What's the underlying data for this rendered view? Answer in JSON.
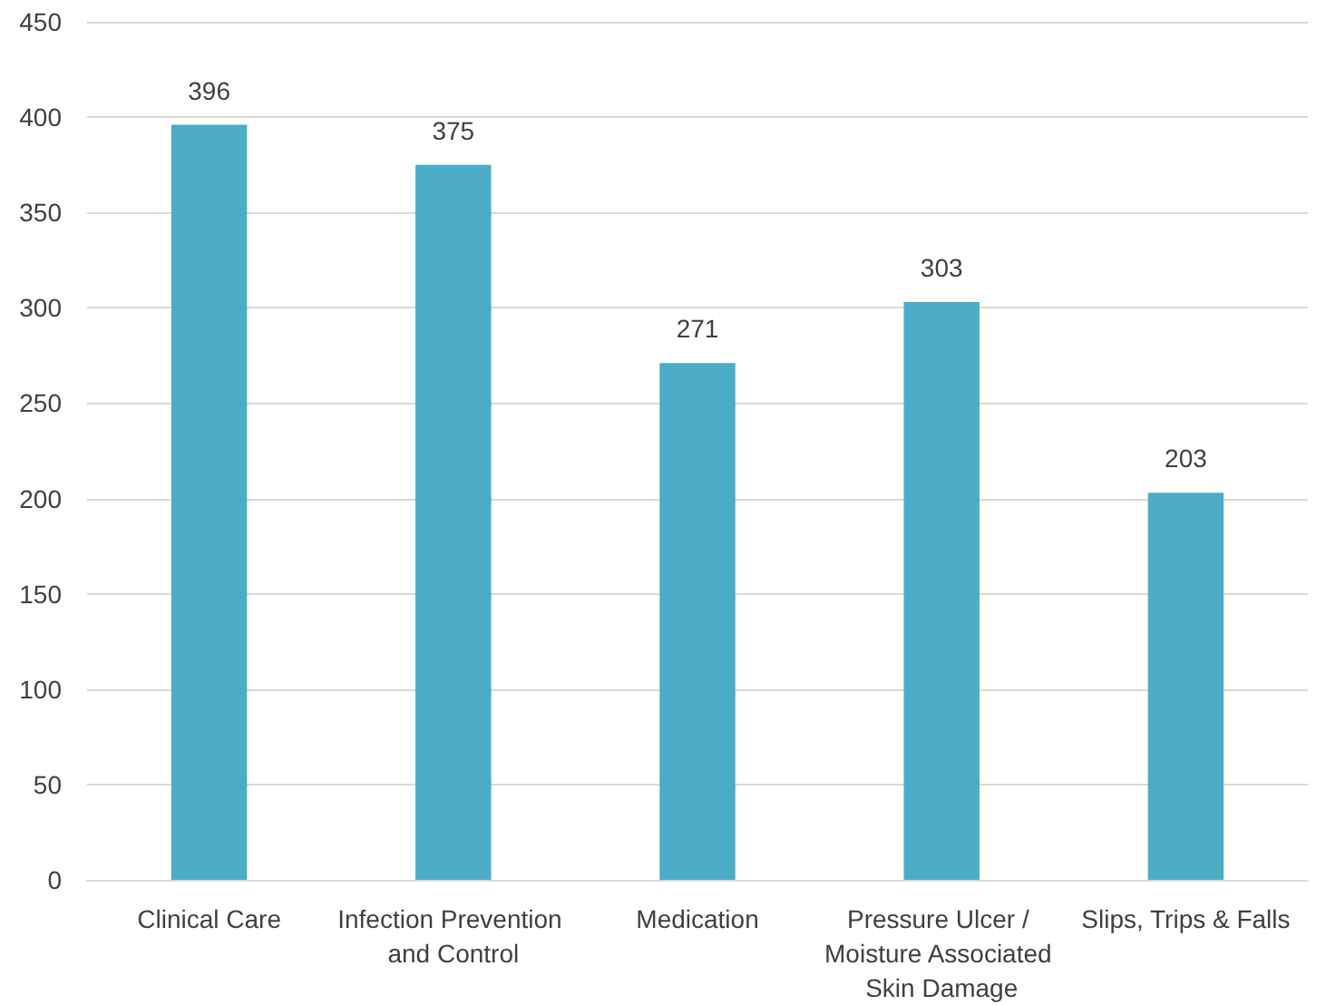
{
  "chart_data": {
    "type": "bar",
    "categories": [
      "Clinical Care",
      "Infection Prevention and Control",
      "Medication",
      "Pressure Ulcer / Moisture Associated Skin Damage",
      "Slips, Trips & Falls"
    ],
    "values": [
      396,
      375,
      271,
      303,
      203
    ],
    "color": "#4bacc6",
    "ylim": [
      0,
      450
    ],
    "yticks": [
      0,
      50,
      100,
      150,
      200,
      250,
      300,
      350,
      400,
      450
    ],
    "grid": "y",
    "data_labels": true
  }
}
